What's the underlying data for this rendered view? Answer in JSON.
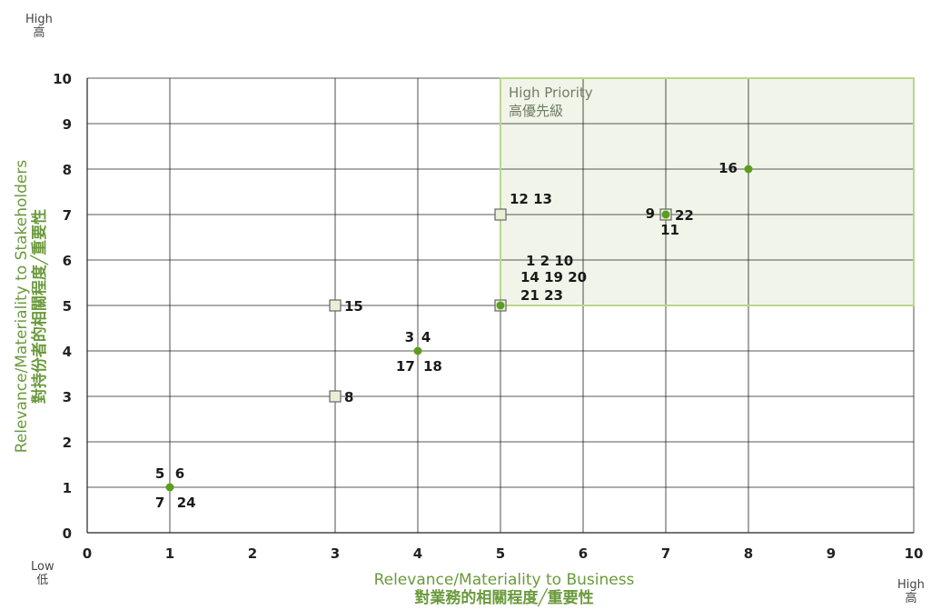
{
  "corner_labels": {
    "top_left": {
      "en": "High",
      "zh": "高"
    },
    "bottom_left": {
      "en": "Low",
      "zh": "低"
    },
    "bottom_right": {
      "en": "High",
      "zh": "高"
    }
  },
  "colors": {
    "priority_fill": "#f1f5e9",
    "priority_border": "#b9d68e",
    "priority_text": "#6f7d63",
    "axis_title": "#6a9a3c",
    "dot": "#5b9e1f",
    "square_fill": "#e7efd6",
    "square_border": "#666666",
    "grid": "#222222"
  },
  "chart_data": {
    "type": "scatter",
    "xlabel": "Relevance/Materiality to Business",
    "xlabel_zh": "對業務的相關程度╱重要性",
    "ylabel": "Relevance/Materiality to Stakeholders",
    "ylabel_zh": "對持份者的相關程度╱重要性",
    "xlim": [
      0,
      10
    ],
    "ylim": [
      0,
      10
    ],
    "xticks": [
      0,
      1,
      2,
      3,
      4,
      5,
      6,
      7,
      8,
      9,
      10
    ],
    "yticks": [
      0,
      1,
      2,
      3,
      4,
      5,
      6,
      7,
      8,
      9,
      10
    ],
    "vertical_gridlines": [
      1,
      3,
      4,
      5,
      6,
      7,
      8,
      10
    ],
    "horizontal_gridlines": [
      1,
      2,
      3,
      4,
      5,
      6,
      7,
      8,
      9,
      10
    ],
    "priority_region": {
      "x": [
        5,
        10
      ],
      "y": [
        5,
        10
      ],
      "label": "High Priority",
      "label_zh": "高優先級"
    },
    "points": [
      {
        "x": 1,
        "y": 1,
        "marker": "dot",
        "labels": [
          {
            "text": "5",
            "pos": "above",
            "offset": -0.12
          },
          {
            "text": "6",
            "pos": "above",
            "offset": 0.12
          },
          {
            "text": "7",
            "pos": "below",
            "offset": -0.12
          },
          {
            "text": "24",
            "pos": "below",
            "offset": 0.2
          }
        ]
      },
      {
        "x": 3,
        "y": 3,
        "marker": "square",
        "labels": [
          {
            "text": "8",
            "pos": "right",
            "offset": 0
          }
        ]
      },
      {
        "x": 3,
        "y": 5,
        "marker": "square",
        "labels": [
          {
            "text": "15",
            "pos": "right",
            "offset": 0
          }
        ]
      },
      {
        "x": 4,
        "y": 4,
        "marker": "dot",
        "labels": [
          {
            "text": "3",
            "pos": "above",
            "offset": -0.1
          },
          {
            "text": "4",
            "pos": "above",
            "offset": 0.1
          },
          {
            "text": "17",
            "pos": "below",
            "offset": -0.15
          },
          {
            "text": "18",
            "pos": "below",
            "offset": 0.18
          }
        ]
      },
      {
        "x": 5,
        "y": 7,
        "marker": "square",
        "labels": [
          {
            "text": "12 13",
            "pos": "right-up",
            "offset": 0
          }
        ]
      },
      {
        "x": 5,
        "y": 5,
        "marker": "square-dot",
        "labels": [
          {
            "text": "1 2 10",
            "pos": "upper-right-3",
            "offset": 0
          },
          {
            "text": "14 19 20",
            "pos": "upper-right-2",
            "offset": 0
          },
          {
            "text": "21 23",
            "pos": "upper-right-1",
            "offset": 0
          }
        ]
      },
      {
        "x": 7,
        "y": 7,
        "marker": "square-dot",
        "labels": [
          {
            "text": "9",
            "pos": "left",
            "offset": 0
          },
          {
            "text": "22",
            "pos": "right",
            "offset": 0
          },
          {
            "text": "11",
            "pos": "below",
            "offset": 0.05
          }
        ]
      },
      {
        "x": 8,
        "y": 8,
        "marker": "dot",
        "labels": [
          {
            "text": "16",
            "pos": "left",
            "offset": 0
          }
        ]
      }
    ]
  }
}
